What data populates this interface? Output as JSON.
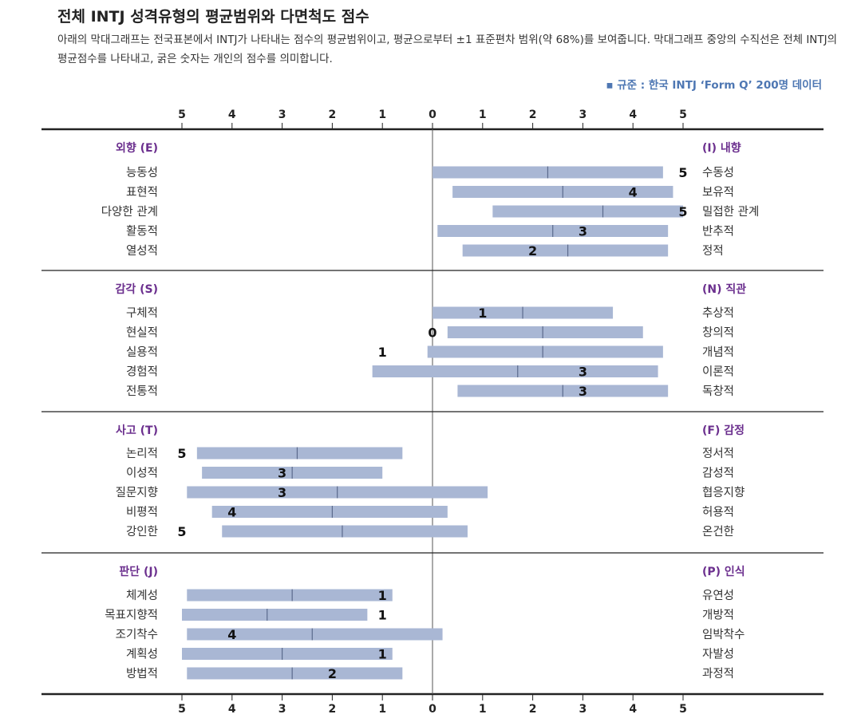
{
  "title": "전체 INTJ 성격유형의 평균범위와 다면척도 점수",
  "description": "아래의 막대그래프는 전국표본에서 INTJ가 나타내는 점수의 평균범위이고, 평균으로부터 ±1 표준편차 범위(약 68%)를 보여줍니다. 막대그래프 중앙의 수직선은 전체 INTJ의 평균점수를 나타내고, 굵은 숫자는 개인의 점수를 의미합니다.",
  "source": "▪ 규준 : 한국 INTJ ‘Form Q’ 200명 데이터",
  "colors": {
    "bar": "#a9b7d4",
    "bar_mean": "#5b6a8c",
    "dichotomy_label": "#6b2f8e",
    "source": "#4e77b3",
    "text": "#333333",
    "axis": "#222222"
  },
  "chart_data": {
    "type": "bar",
    "orientation": "horizontal-range",
    "x_ticks": [
      "5",
      "4",
      "3",
      "2",
      "1",
      "0",
      "1",
      "2",
      "3",
      "4",
      "5"
    ],
    "x_tick_values": [
      -5,
      -4,
      -3,
      -2,
      -1,
      0,
      1,
      2,
      3,
      4,
      5
    ],
    "xlim": [
      -5,
      5
    ],
    "value_convention": "negative = left pole, positive = right pole",
    "sections": [
      {
        "left_title": "외향 (E)",
        "right_title": "(I) 내향",
        "rows": [
          {
            "left": "능동성",
            "right": "수동성",
            "range": [
              0.0,
              4.6
            ],
            "mean": 2.3,
            "score": 5,
            "score_label": "5"
          },
          {
            "left": "표현적",
            "right": "보유적",
            "range": [
              0.4,
              4.8
            ],
            "mean": 2.6,
            "score": 4,
            "score_label": "4"
          },
          {
            "left": "다양한 관계",
            "right": "밀접한 관계",
            "range": [
              1.2,
              5.0
            ],
            "mean": 3.4,
            "score": 5,
            "score_label": "5"
          },
          {
            "left": "활동적",
            "right": "반추적",
            "range": [
              0.1,
              4.7
            ],
            "mean": 2.4,
            "score": 3,
            "score_label": "3"
          },
          {
            "left": "열성적",
            "right": "정적",
            "range": [
              0.6,
              4.7
            ],
            "mean": 2.7,
            "score": 2,
            "score_label": "2"
          }
        ]
      },
      {
        "left_title": "감각 (S)",
        "right_title": "(N) 직관",
        "rows": [
          {
            "left": "구체적",
            "right": "추상적",
            "range": [
              0.0,
              3.6
            ],
            "mean": 1.8,
            "score": 1,
            "score_label": "1"
          },
          {
            "left": "현실적",
            "right": "창의적",
            "range": [
              0.3,
              4.2
            ],
            "mean": 2.2,
            "score": 0,
            "score_label": "0"
          },
          {
            "left": "실용적",
            "right": "개념적",
            "range": [
              -0.1,
              4.6
            ],
            "mean": 2.2,
            "score": -1,
            "score_label": "1"
          },
          {
            "left": "경험적",
            "right": "이론적",
            "range": [
              -1.2,
              4.5
            ],
            "mean": 1.7,
            "score": 3,
            "score_label": "3"
          },
          {
            "left": "전통적",
            "right": "독창적",
            "range": [
              0.5,
              4.7
            ],
            "mean": 2.6,
            "score": 3,
            "score_label": "3"
          }
        ]
      },
      {
        "left_title": "사고 (T)",
        "right_title": "(F) 감정",
        "rows": [
          {
            "left": "논리적",
            "right": "정서적",
            "range": [
              -4.7,
              -0.6
            ],
            "mean": -2.7,
            "score": -5,
            "score_label": "5"
          },
          {
            "left": "이성적",
            "right": "감성적",
            "range": [
              -4.6,
              -1.0
            ],
            "mean": -2.8,
            "score": -3,
            "score_label": "3"
          },
          {
            "left": "질문지향",
            "right": "협응지향",
            "range": [
              -4.9,
              1.1
            ],
            "mean": -1.9,
            "score": -3,
            "score_label": "3"
          },
          {
            "left": "비평적",
            "right": "허용적",
            "range": [
              -4.4,
              0.3
            ],
            "mean": -2.0,
            "score": -4,
            "score_label": "4"
          },
          {
            "left": "강인한",
            "right": "온건한",
            "range": [
              -4.2,
              0.7
            ],
            "mean": -1.8,
            "score": -5,
            "score_label": "5"
          }
        ]
      },
      {
        "left_title": "판단 (J)",
        "right_title": "(P) 인식",
        "rows": [
          {
            "left": "체계성",
            "right": "유연성",
            "range": [
              -4.9,
              -0.8
            ],
            "mean": -2.8,
            "score": -1,
            "score_label": "1"
          },
          {
            "left": "목표지향적",
            "right": "개방적",
            "range": [
              -5.0,
              -1.3
            ],
            "mean": -3.3,
            "score": -1,
            "score_label": "1"
          },
          {
            "left": "조기착수",
            "right": "임박착수",
            "range": [
              -4.9,
              0.2
            ],
            "mean": -2.4,
            "score": -4,
            "score_label": "4"
          },
          {
            "left": "계획성",
            "right": "자발성",
            "range": [
              -5.0,
              -0.8
            ],
            "mean": -3.0,
            "score": -1,
            "score_label": "1"
          },
          {
            "left": "방법적",
            "right": "과정적",
            "range": [
              -4.9,
              -0.6
            ],
            "mean": -2.8,
            "score": -2,
            "score_label": "2"
          }
        ]
      }
    ]
  }
}
